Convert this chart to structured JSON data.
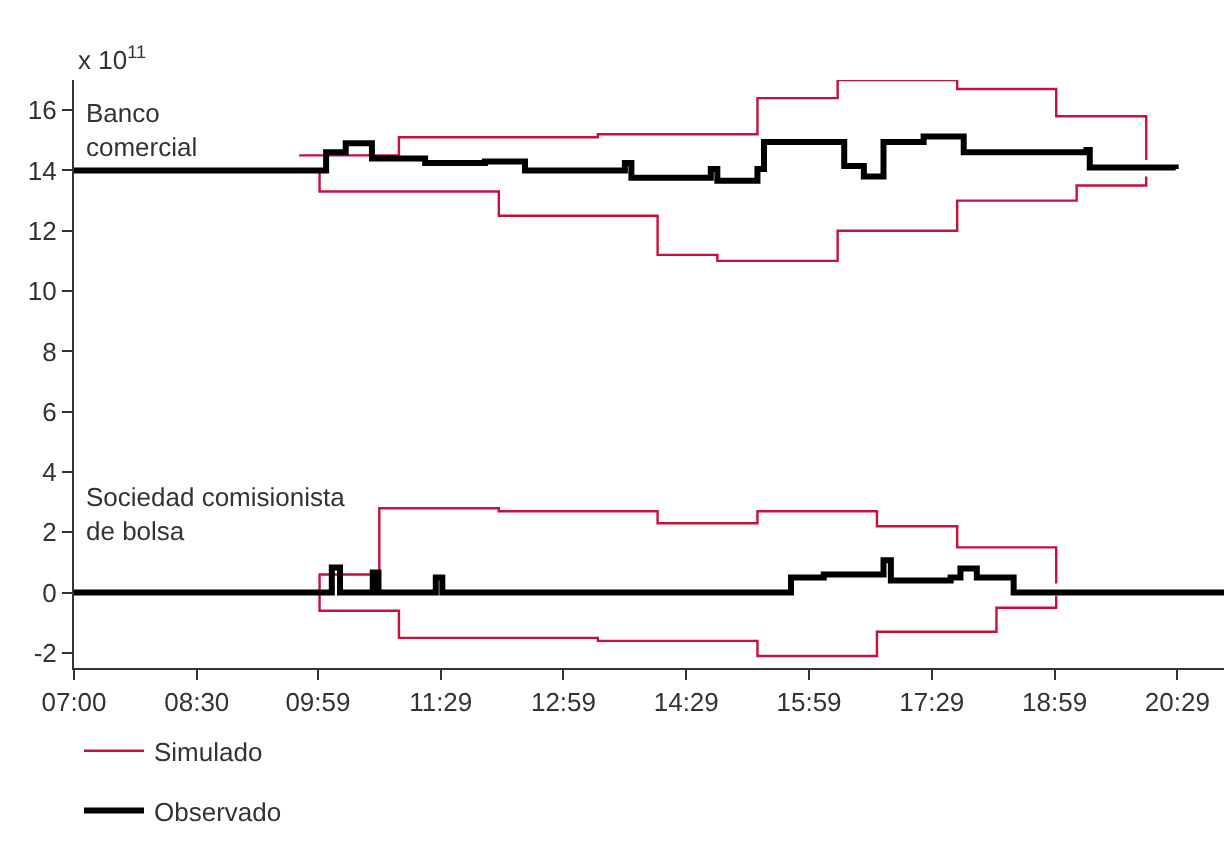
{
  "chart_data": {
    "type": "step",
    "ylabel": "x 10$^{11}$",
    "annotations": [
      "Banco\ncomercial",
      "Sociedad comisionista\nde bolsa"
    ],
    "xlim": [
      7,
      21.05
    ],
    "xticks": [
      {
        "value": 7,
        "label": "07:00"
      },
      {
        "value": 8.5,
        "label": "08:30"
      },
      {
        "value": 9.98,
        "label": "09:59"
      },
      {
        "value": 11.48,
        "label": "11:29"
      },
      {
        "value": 12.98,
        "label": "12:59"
      },
      {
        "value": 14.48,
        "label": "14:29"
      },
      {
        "value": 15.98,
        "label": "15:59"
      },
      {
        "value": 17.48,
        "label": "17:29"
      },
      {
        "value": 18.98,
        "label": "18:59"
      },
      {
        "value": 20.48,
        "label": "20:29"
      }
    ],
    "ylim": [
      -2.5,
      17
    ],
    "yticks": [
      -2,
      0,
      2,
      4,
      6,
      8,
      10,
      12,
      14,
      16
    ],
    "legend": "bottom",
    "series": [
      {
        "name": "Simulado",
        "color": "#c8103e",
        "x": [
          9.75,
          10.97,
          13.4,
          15.35,
          16.33,
          17.79,
          19.0,
          20.1
        ],
        "values": [
          14.5,
          15.1,
          15.2,
          16.4,
          17.0,
          16.7,
          15.8,
          14.35
        ]
      },
      {
        "color": "#c8103e",
        "x": [
          9.75,
          10.0,
          12.19,
          14.13,
          14.86,
          16.33,
          17.79,
          19.25,
          20.1
        ],
        "values": [
          14.0,
          13.3,
          12.5,
          11.2,
          11.0,
          12.0,
          13.0,
          13.5,
          13.8
        ]
      },
      {
        "color": "#c8103e",
        "x": [
          9.9,
          10.0,
          10.73,
          12.19,
          14.13,
          15.35,
          16.81,
          17.79,
          19.0
        ],
        "values": [
          0,
          0.6,
          2.8,
          2.7,
          2.3,
          2.7,
          2.2,
          1.5,
          0.3
        ]
      },
      {
        "color": "#c8103e",
        "x": [
          9.9,
          10.0,
          10.97,
          13.4,
          15.35,
          16.81,
          18.27,
          19.0
        ],
        "values": [
          0,
          -0.6,
          -1.5,
          -1.6,
          -2.1,
          -1.3,
          -0.5,
          -0.1
        ]
      },
      {
        "name": "Observado",
        "color": "#000000",
        "x": [
          7,
          9.75,
          10.08,
          10.32,
          10.64,
          11.29,
          12.02,
          12.51,
          13.73,
          13.81,
          14.78,
          14.86,
          15.35,
          15.43,
          16.41,
          16.65,
          16.89,
          17.38,
          17.87,
          19.37,
          19.41,
          20.46
        ],
        "values": [
          14,
          14,
          14.6,
          14.9,
          14.4,
          14.25,
          14.3,
          14.0,
          14.25,
          13.76,
          14.05,
          13.66,
          14.05,
          14.94,
          14.15,
          13.8,
          14.94,
          15.13,
          14.6,
          14.68,
          14.1,
          14.05
        ]
      },
      {
        "color": "#000000",
        "x": [
          7,
          10.15,
          10.25,
          10.65,
          10.72,
          11.42,
          11.5,
          15.76,
          16.16,
          16.89,
          16.98,
          17.71,
          17.83,
          18.03,
          18.48,
          21.05
        ],
        "values": [
          0,
          0.83,
          0,
          0.67,
          0,
          0.5,
          0,
          0.5,
          0.6,
          1.07,
          0.4,
          0.5,
          0.8,
          0.5,
          0,
          0
        ]
      }
    ]
  }
}
